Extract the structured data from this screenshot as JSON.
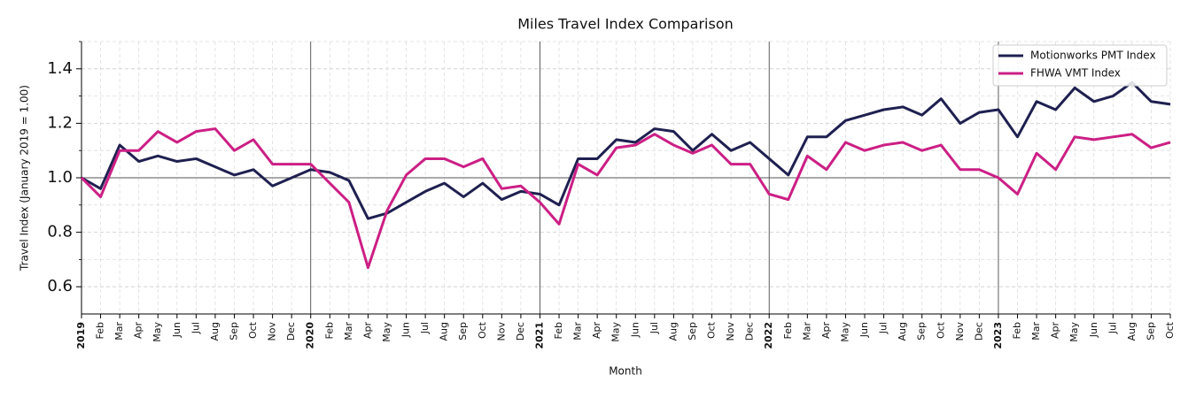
{
  "chart_data": {
    "type": "line",
    "title": "Miles Travel Index Comparison",
    "x_label": "Month",
    "y_label": "Travel Index (January 2019 = 1.00)",
    "categories": [
      "2019",
      "Feb",
      "Mar",
      "Apr",
      "May",
      "Jun",
      "Jul",
      "Aug",
      "Sep",
      "Oct",
      "Nov",
      "Dec",
      "2020",
      "Feb",
      "Mar",
      "Apr",
      "May",
      "Jun",
      "Jul",
      "Aug",
      "Sep",
      "Oct",
      "Nov",
      "Dec",
      "2021",
      "Feb",
      "Mar",
      "Apr",
      "May",
      "Jun",
      "Jul",
      "Aug",
      "Sep",
      "Oct",
      "Nov",
      "Dec",
      "2022",
      "Feb",
      "Mar",
      "Apr",
      "May",
      "Jun",
      "Jul",
      "Aug",
      "Sep",
      "Oct",
      "Nov",
      "Dec",
      "2023",
      "Feb",
      "Mar",
      "Apr",
      "May",
      "Jun",
      "Jul",
      "Aug",
      "Sep",
      "Oct"
    ],
    "series": [
      {
        "name": "Motionworks PMT Index",
        "color": "#1f2050",
        "values": [
          1.0,
          0.96,
          1.12,
          1.06,
          1.08,
          1.06,
          1.07,
          1.04,
          1.01,
          1.03,
          0.97,
          1.0,
          1.03,
          1.02,
          0.99,
          0.85,
          0.87,
          0.91,
          0.95,
          0.98,
          0.93,
          0.98,
          0.92,
          0.95,
          0.94,
          0.9,
          1.07,
          1.07,
          1.14,
          1.13,
          1.18,
          1.17,
          1.1,
          1.16,
          1.1,
          1.13,
          1.07,
          1.01,
          1.15,
          1.15,
          1.21,
          1.23,
          1.25,
          1.26,
          1.23,
          1.29,
          1.2,
          1.24,
          1.25,
          1.15,
          1.28,
          1.25,
          1.33,
          1.28,
          1.3,
          1.35,
          1.28,
          1.27
        ]
      },
      {
        "name": "FHWA VMT Index",
        "color": "#cc1f85",
        "values": [
          1.0,
          0.93,
          1.1,
          1.1,
          1.17,
          1.13,
          1.17,
          1.18,
          1.1,
          1.14,
          1.05,
          1.05,
          1.05,
          0.98,
          0.91,
          0.67,
          0.88,
          1.01,
          1.07,
          1.07,
          1.04,
          1.07,
          0.96,
          0.97,
          0.91,
          0.83,
          1.05,
          1.01,
          1.11,
          1.12,
          1.16,
          1.12,
          1.09,
          1.12,
          1.05,
          1.05,
          0.94,
          0.92,
          1.08,
          1.03,
          1.13,
          1.1,
          1.12,
          1.13,
          1.1,
          1.12,
          1.03,
          1.03,
          1.0,
          0.94,
          1.09,
          1.03,
          1.15,
          1.14,
          1.15,
          1.16,
          1.11,
          1.13
        ]
      }
    ],
    "ylim": [
      0.5,
      1.5
    ],
    "yticks": [
      0.6,
      0.8,
      {
        "value": 1,
        "label": "1.0"
      },
      1.2,
      1.4
    ],
    "yminorticks": [
      0.7,
      0.9,
      1.1,
      1.3,
      1.5
    ],
    "reference_line": 1,
    "grid": true,
    "legend": "upper right"
  }
}
